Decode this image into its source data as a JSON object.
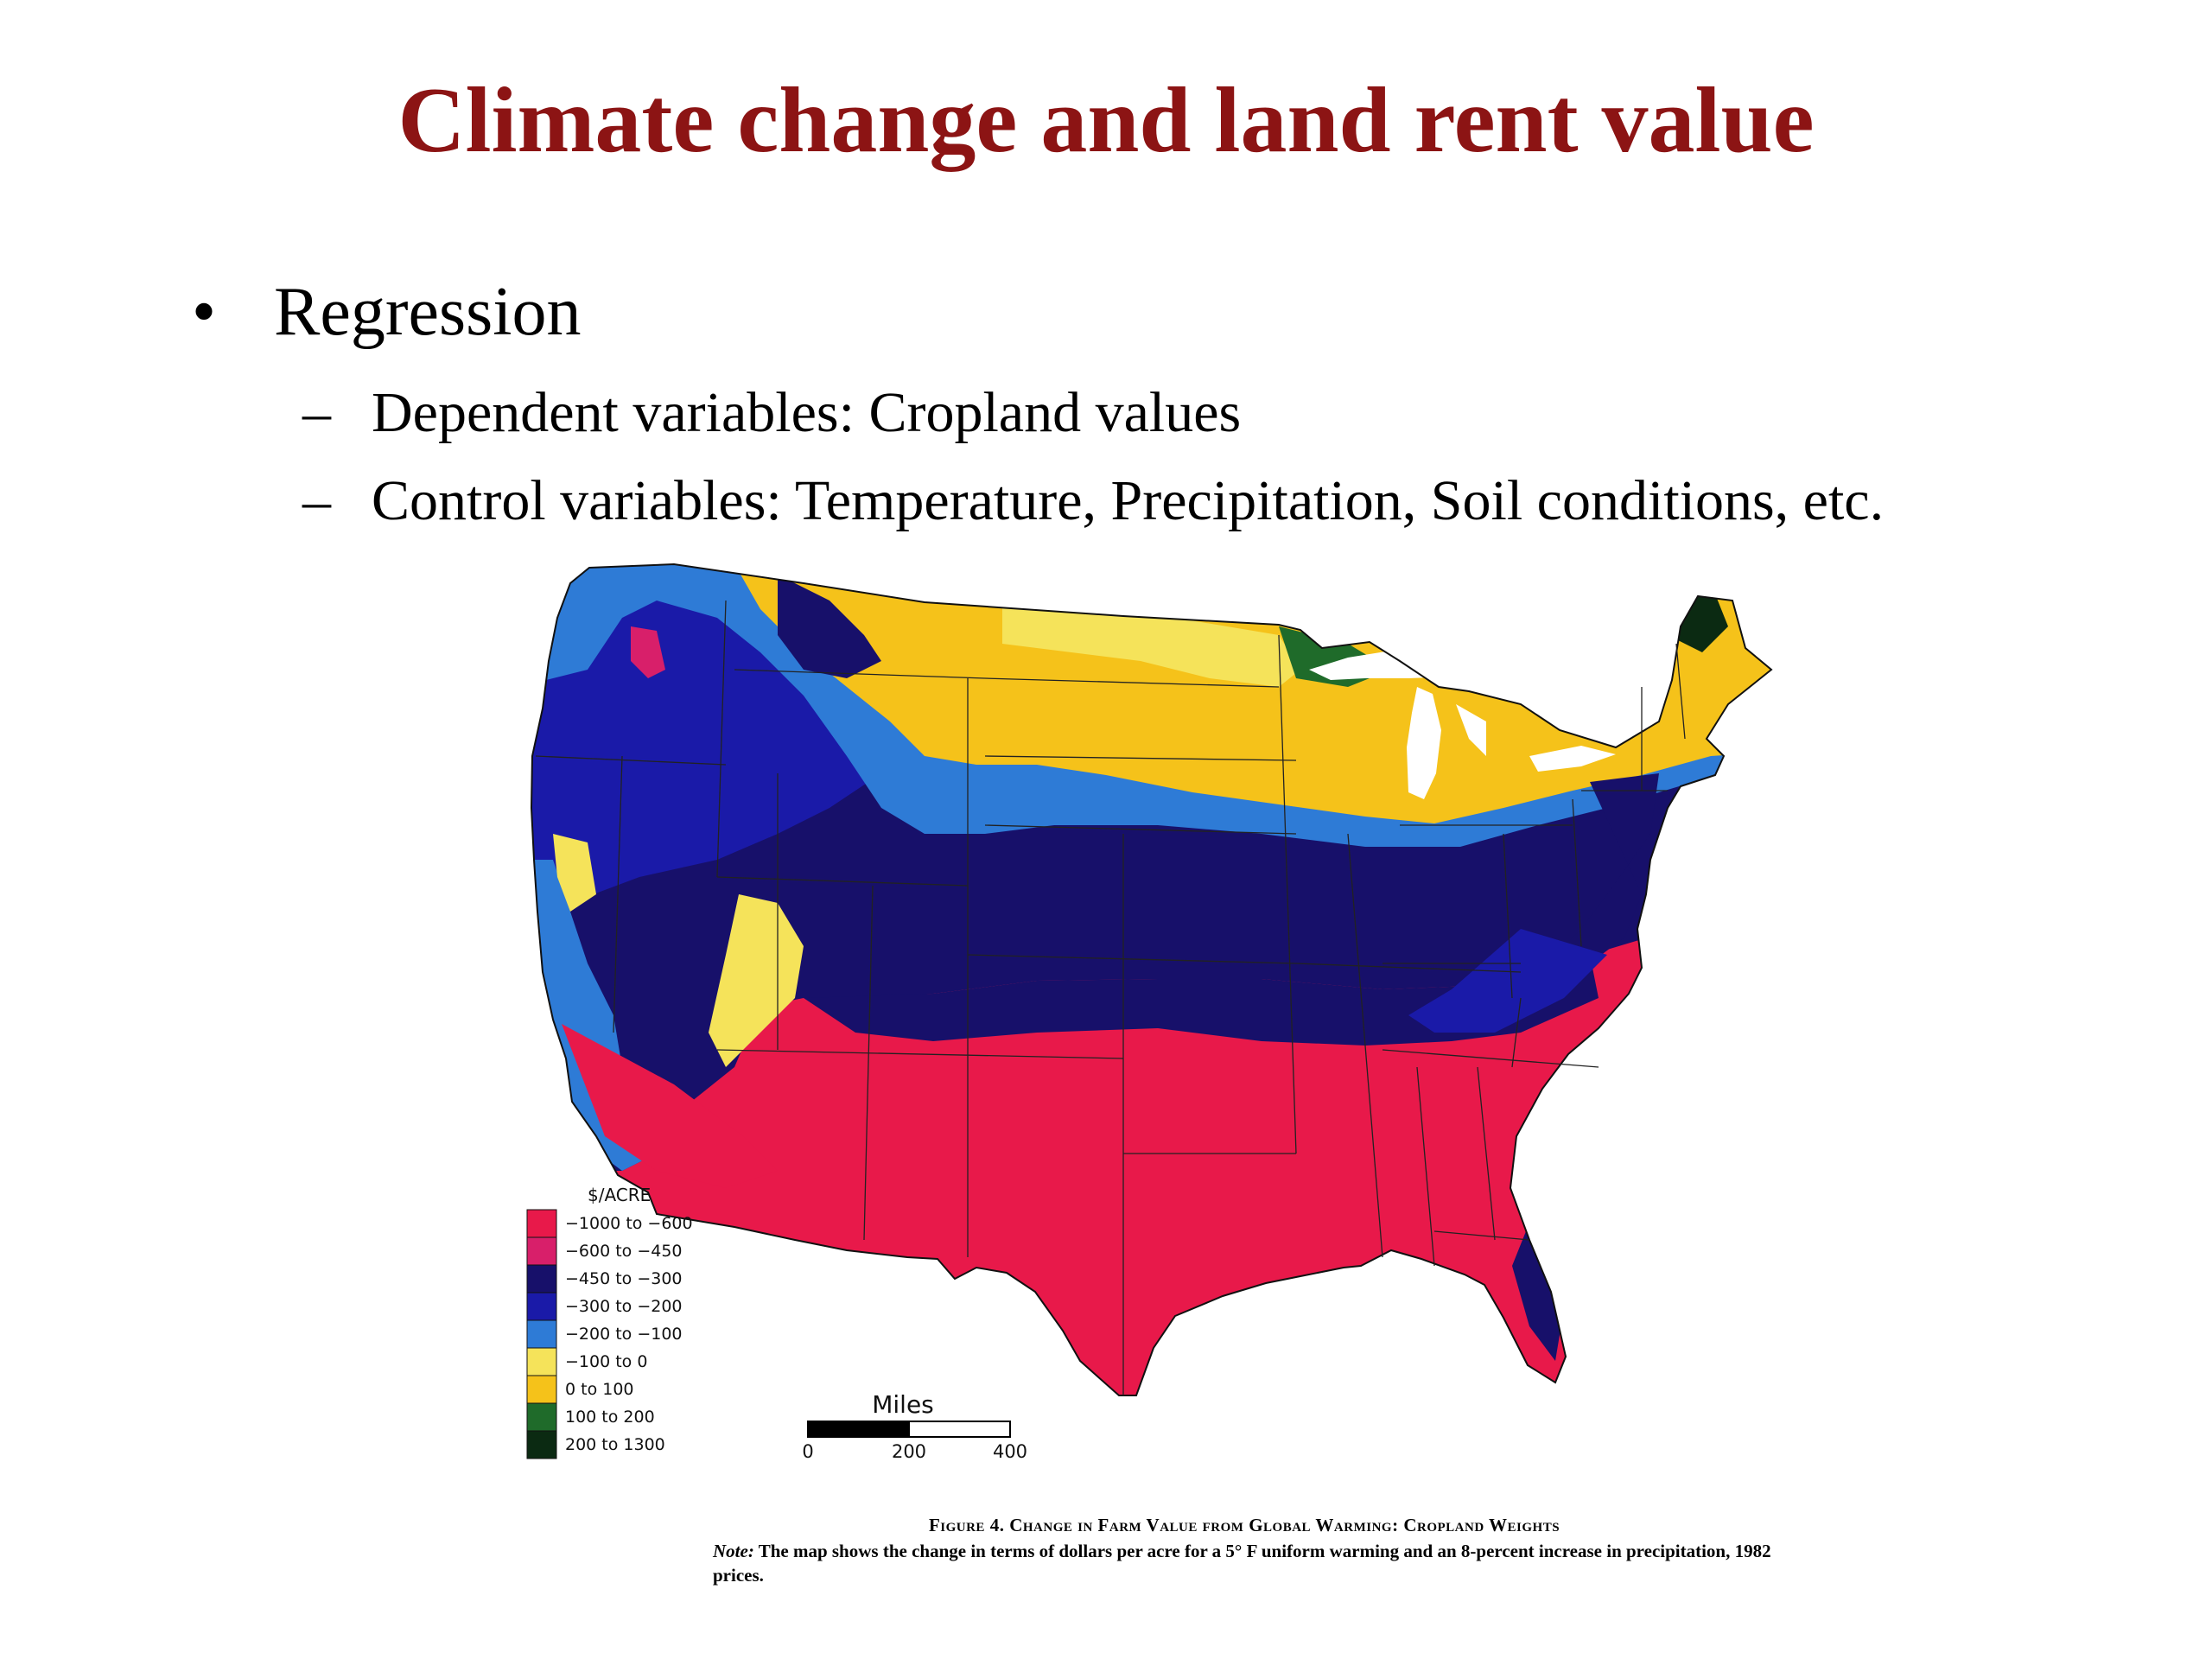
{
  "slide": {
    "title": "Climate change and land rent value",
    "bullet": "Regression",
    "bullet_marker": "•",
    "sub_marker": "–",
    "subbullets": [
      "Dependent variables: Cropland values",
      "Control variables: Temperature, Precipitation, Soil conditions, etc."
    ]
  },
  "map": {
    "legend": {
      "title": "$/ACRE",
      "items": [
        {
          "label": "−1000  to  −600",
          "color": "#e8194a"
        },
        {
          "label": "−600  to  −450",
          "color": "#d81f6a"
        },
        {
          "label": "−450  to  −300",
          "color": "#17106a"
        },
        {
          "label": "−300  to  −200",
          "color": "#1a1aa8"
        },
        {
          "label": "−200  to  −100",
          "color": "#2e7bd6"
        },
        {
          "label": "−100  to  0",
          "color": "#f5e35a"
        },
        {
          "label": "0  to  100",
          "color": "#f5c21a"
        },
        {
          "label": "100  to  200",
          "color": "#1f6b2a"
        },
        {
          "label": "200  to  1300",
          "color": "#0b2a12"
        }
      ]
    },
    "scale": {
      "title": "Miles",
      "ticks": [
        "0",
        "200",
        "400"
      ]
    },
    "caption": {
      "title": "Figure 4.  Change in Farm Value from Global Warming: Cropland Weights",
      "note_label": "Note:",
      "note_text": "The map shows the change in terms of dollars per acre for a 5° F uniform warming and an 8-percent increase in precipitation, 1982 prices."
    },
    "colors": {
      "red": "#e8194a",
      "magenta": "#d81f6a",
      "navy": "#17106a",
      "blue": "#1a1aa8",
      "lightblue": "#2e7bd6",
      "yellow": "#f5e35a",
      "gold": "#f5c21a",
      "green": "#1f6b2a",
      "darkgreen": "#0b2a12",
      "lake": "#ffffff"
    }
  }
}
